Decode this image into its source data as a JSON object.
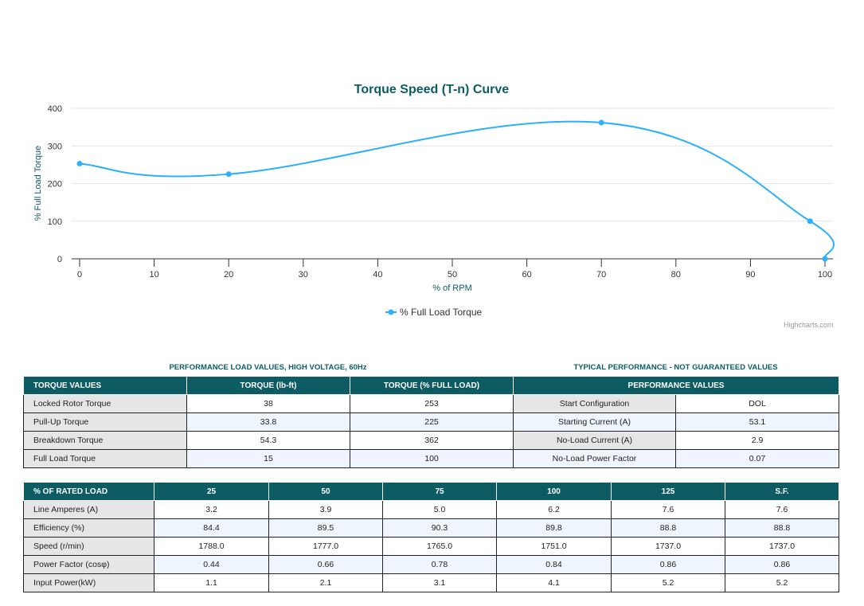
{
  "chart_data": {
    "type": "line",
    "title": "Torque Speed (T-n) Curve",
    "xlabel": "% of RPM",
    "ylabel": "% Full Load Torque",
    "xlim": [
      0,
      100
    ],
    "ylim": [
      0,
      400
    ],
    "xticks": [
      0,
      10,
      20,
      30,
      40,
      50,
      60,
      70,
      80,
      90,
      100
    ],
    "yticks": [
      0,
      100,
      200,
      300,
      400
    ],
    "series": [
      {
        "name": "% Full Load Torque",
        "color": "#2caffe",
        "x": [
          0,
          20,
          70,
          98,
          100
        ],
        "y": [
          253,
          225,
          362,
          100,
          0
        ]
      }
    ],
    "legend": "bottom-center",
    "grid": true
  },
  "credit": "Highcharts.com",
  "captions": {
    "left": "PERFORMANCE LOAD VALUES, HIGH VOLTAGE, 60Hz",
    "right": "TYPICAL PERFORMANCE - NOT GUARANTEED VALUES"
  },
  "torque_table": {
    "headers": [
      "TORQUE VALUES",
      "TORQUE (lb-ft)",
      "TORQUE (% FULL LOAD)",
      "PERFORMANCE VALUES"
    ],
    "rows": [
      [
        "Locked Rotor Torque",
        "38",
        "253",
        "Start Configuration",
        "DOL"
      ],
      [
        "Pull-Up Torque",
        "33.8",
        "225",
        "Starting Current (A)",
        "53.1"
      ],
      [
        "Breakdown Torque",
        "54.3",
        "362",
        "No-Load Current (A)",
        "2.9"
      ],
      [
        "Full Load Torque",
        "15",
        "100",
        "No-Load Power Factor",
        "0.07"
      ]
    ]
  },
  "load_table": {
    "headers": [
      "% OF RATED LOAD",
      "25",
      "50",
      "75",
      "100",
      "125",
      "S.F."
    ],
    "rows": [
      [
        "Line Amperes (A)",
        "3.2",
        "3.9",
        "5.0",
        "6.2",
        "7.6",
        "7.6"
      ],
      [
        "Efficiency (%)",
        "84.4",
        "89.5",
        "90.3",
        "89.8",
        "88.8",
        "88.8"
      ],
      [
        "Speed (r/min)",
        "1788.0",
        "1777.0",
        "1765.0",
        "1751.0",
        "1737.0",
        "1737.0"
      ],
      [
        "Power Factor (cosφ)",
        "0.44",
        "0.66",
        "0.78",
        "0.84",
        "0.86",
        "0.86"
      ],
      [
        "Input Power(kW)",
        "1.1",
        "2.1",
        "3.1",
        "4.1",
        "5.2",
        "5.2"
      ]
    ]
  }
}
